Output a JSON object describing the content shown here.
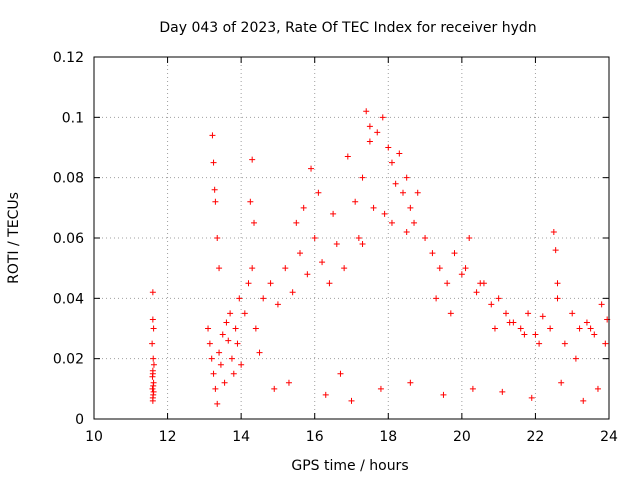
{
  "chart_data": {
    "type": "scatter",
    "title": "Day 043 of 2023, Rate Of TEC Index for receiver hydn",
    "xlabel": "GPS time / hours",
    "ylabel": "ROTI / TECUs",
    "xlim": [
      10,
      24
    ],
    "ylim": [
      0,
      0.12
    ],
    "xticks": [
      10,
      12,
      14,
      16,
      18,
      20,
      22,
      24
    ],
    "xtick_labels": [
      "10",
      "12",
      "14",
      "16",
      "18",
      "20",
      "22",
      "24"
    ],
    "yticks": [
      0,
      0.02,
      0.04,
      0.06,
      0.08,
      0.1,
      0.12
    ],
    "ytick_labels": [
      "0",
      "0.02",
      "0.04",
      "0.06",
      "0.08",
      "0.1",
      "0.12"
    ],
    "grid": true,
    "marker": "plus",
    "color": "#ff0000",
    "series": [
      {
        "x": [
          11.6,
          11.6,
          11.62,
          11.58,
          11.61,
          11.63,
          11.6,
          11.62,
          11.59,
          11.61,
          11.6,
          11.6,
          11.62,
          11.61,
          11.59,
          11.6,
          13.1,
          13.15,
          13.2,
          13.25,
          13.3,
          13.35,
          13.4,
          13.45,
          13.5,
          13.55,
          13.6,
          13.65,
          13.7,
          13.75,
          13.8,
          13.85,
          13.9,
          13.95,
          14.0,
          14.1,
          14.2,
          14.3,
          14.4,
          14.5,
          13.22,
          13.25,
          13.28,
          13.3,
          13.35,
          13.4,
          14.25,
          14.3,
          14.35,
          14.6,
          14.8,
          15.0,
          15.2,
          15.4,
          15.6,
          15.8,
          16.0,
          16.2,
          16.4,
          16.6,
          16.8,
          15.5,
          15.7,
          15.9,
          16.1,
          16.5,
          16.9,
          17.1,
          17.3,
          17.5,
          17.4,
          17.5,
          17.7,
          17.85,
          18.0,
          18.1,
          18.2,
          18.3,
          18.4,
          18.5,
          18.6,
          18.7,
          17.2,
          17.3,
          17.6,
          17.9,
          18.1,
          18.5,
          18.8,
          19.0,
          19.2,
          19.4,
          19.6,
          19.8,
          20.0,
          20.2,
          20.4,
          20.6,
          20.8,
          21.0,
          21.2,
          21.4,
          21.6,
          21.8,
          22.0,
          22.2,
          22.4,
          22.6,
          22.8,
          23.0,
          23.2,
          23.4,
          23.6,
          23.8,
          23.95,
          19.3,
          19.7,
          20.1,
          20.5,
          20.9,
          21.3,
          21.7,
          22.1,
          22.5,
          22.55,
          22.6,
          23.1,
          23.5,
          23.9,
          14.9,
          15.3,
          16.3,
          16.7,
          17.0,
          17.8,
          18.6,
          19.5,
          20.3,
          21.1,
          21.9,
          22.7,
          23.3,
          23.7
        ],
        "y": [
          0.042,
          0.033,
          0.03,
          0.025,
          0.02,
          0.018,
          0.015,
          0.012,
          0.01,
          0.008,
          0.007,
          0.006,
          0.009,
          0.011,
          0.014,
          0.016,
          0.03,
          0.025,
          0.02,
          0.015,
          0.01,
          0.005,
          0.022,
          0.018,
          0.028,
          0.012,
          0.032,
          0.026,
          0.035,
          0.02,
          0.015,
          0.03,
          0.025,
          0.04,
          0.018,
          0.035,
          0.045,
          0.05,
          0.03,
          0.022,
          0.094,
          0.085,
          0.076,
          0.072,
          0.06,
          0.05,
          0.072,
          0.086,
          0.065,
          0.04,
          0.045,
          0.038,
          0.05,
          0.042,
          0.055,
          0.048,
          0.06,
          0.052,
          0.045,
          0.058,
          0.05,
          0.065,
          0.07,
          0.083,
          0.075,
          0.068,
          0.087,
          0.072,
          0.08,
          0.092,
          0.102,
          0.097,
          0.095,
          0.1,
          0.09,
          0.085,
          0.078,
          0.088,
          0.075,
          0.08,
          0.07,
          0.065,
          0.06,
          0.058,
          0.07,
          0.068,
          0.065,
          0.062,
          0.075,
          0.06,
          0.055,
          0.05,
          0.045,
          0.055,
          0.048,
          0.06,
          0.042,
          0.045,
          0.038,
          0.04,
          0.035,
          0.032,
          0.03,
          0.035,
          0.028,
          0.034,
          0.03,
          0.04,
          0.025,
          0.035,
          0.03,
          0.032,
          0.028,
          0.038,
          0.033,
          0.04,
          0.035,
          0.05,
          0.045,
          0.03,
          0.032,
          0.028,
          0.025,
          0.062,
          0.056,
          0.045,
          0.02,
          0.03,
          0.025,
          0.01,
          0.012,
          0.008,
          0.015,
          0.006,
          0.01,
          0.012,
          0.008,
          0.01,
          0.009,
          0.007,
          0.012,
          0.006,
          0.01
        ]
      }
    ]
  }
}
